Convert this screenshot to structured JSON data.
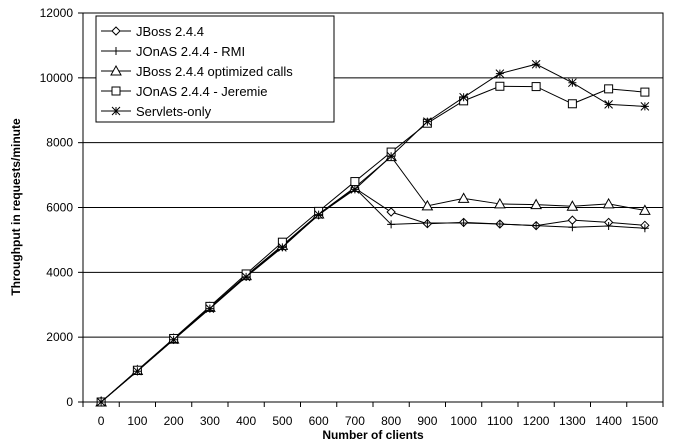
{
  "chart_data": {
    "type": "line",
    "title": "",
    "xlabel": "Number of clients",
    "ylabel": "Throughput in requests/minute",
    "categories": [
      0,
      100,
      200,
      300,
      400,
      500,
      600,
      700,
      800,
      900,
      1000,
      1100,
      1200,
      1300,
      1400,
      1500
    ],
    "ylim": [
      0,
      12000
    ],
    "yticks": [
      0,
      2000,
      4000,
      6000,
      8000,
      10000,
      12000
    ],
    "grid": "horizontal",
    "legend_position": "top-left",
    "series": [
      {
        "name": "JBoss 2.4.4",
        "marker": "diamond",
        "values": [
          0,
          960,
          1930,
          2900,
          3880,
          4800,
          5770,
          6600,
          5860,
          5500,
          5540,
          5490,
          5440,
          5610,
          5540,
          5450
        ]
      },
      {
        "name": "JOnAS 2.4.4 - RMI",
        "marker": "plus",
        "values": [
          0,
          960,
          1930,
          2900,
          3880,
          4800,
          5770,
          6600,
          5480,
          5520,
          5520,
          5490,
          5440,
          5390,
          5430,
          5360
        ]
      },
      {
        "name": "JBoss 2.4.4 optimized calls",
        "marker": "triangle",
        "values": [
          0,
          970,
          1940,
          2920,
          3900,
          4830,
          5800,
          6620,
          7570,
          6050,
          6280,
          6110,
          6090,
          6040,
          6110,
          5910
        ]
      },
      {
        "name": "JOnAS 2.4.4 - Jeremie",
        "marker": "square",
        "values": [
          0,
          980,
          1960,
          2950,
          3950,
          4930,
          5880,
          6800,
          7710,
          8600,
          9290,
          9740,
          9730,
          9200,
          9660,
          9560
        ]
      },
      {
        "name": "Servlets-only",
        "marker": "asterisk",
        "values": [
          0,
          950,
          1920,
          2880,
          3860,
          4770,
          5780,
          6560,
          7580,
          8650,
          9400,
          10130,
          10420,
          9850,
          9180,
          9120
        ]
      }
    ]
  }
}
